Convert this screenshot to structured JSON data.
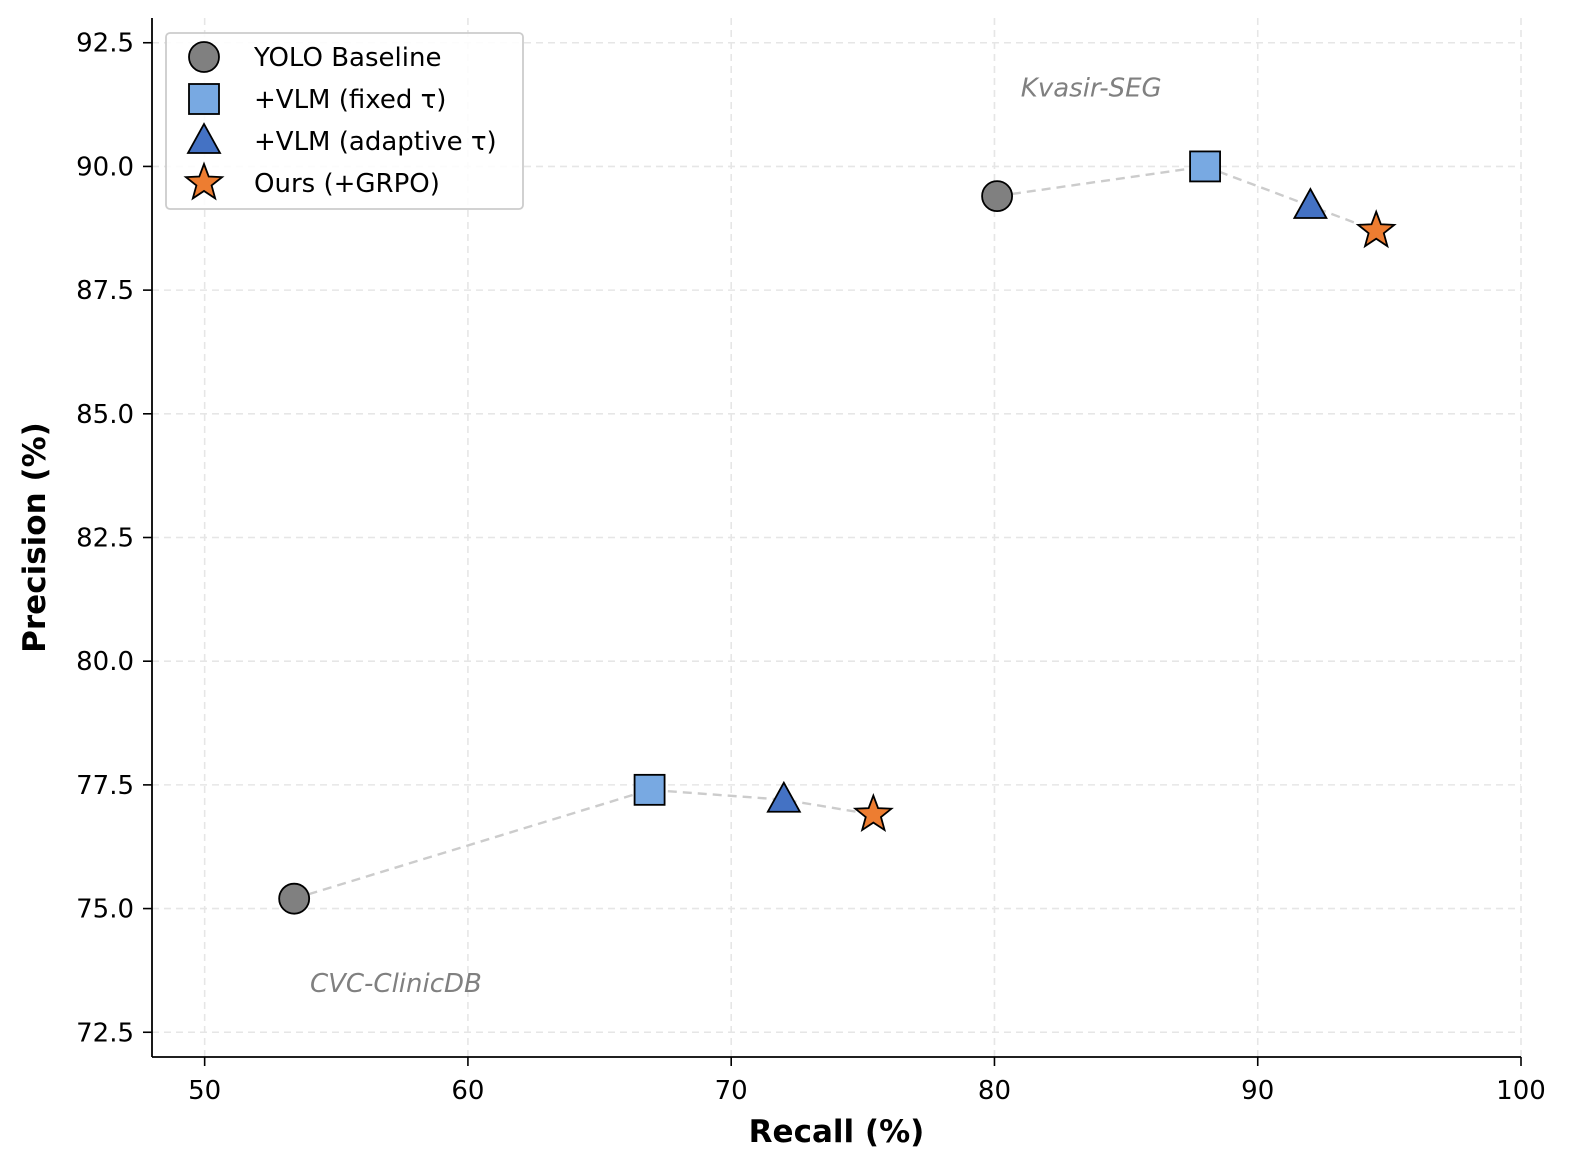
{
  "chart_data": {
    "type": "scatter",
    "title": "",
    "xlabel": "Recall (%)",
    "ylabel": "Precision (%)",
    "xlim": [
      48,
      100
    ],
    "ylim": [
      72,
      93
    ],
    "xticks": [
      50,
      60,
      70,
      80,
      90,
      100
    ],
    "yticks": [
      72.5,
      75.0,
      77.5,
      80.0,
      82.5,
      85.0,
      87.5,
      90.0,
      92.5
    ],
    "grid": true,
    "legend_position": "top-left",
    "methods": [
      {
        "name": "YOLO Baseline",
        "marker": "circle",
        "color": "#808080"
      },
      {
        "name": "+VLM (fixed τ)",
        "marker": "square",
        "color": "#78a9e2"
      },
      {
        "name": "+VLM (adaptive τ)",
        "marker": "triangle",
        "color": "#4472c4"
      },
      {
        "name": "Ours (+GRPO)",
        "marker": "star",
        "color": "#ed7d31"
      }
    ],
    "series": [
      {
        "name": "Kvasir-SEG",
        "label_anchor": [
          81.0,
          91.6
        ],
        "points": [
          [
            80.1,
            89.4
          ],
          [
            88.0,
            90.0
          ],
          [
            92.0,
            89.2
          ],
          [
            94.5,
            88.7
          ]
        ]
      },
      {
        "name": "CVC-ClinicDB",
        "label_anchor": [
          54.0,
          73.5
        ],
        "points": [
          [
            53.4,
            75.2
          ],
          [
            66.9,
            77.4
          ],
          [
            72.0,
            77.2
          ],
          [
            75.4,
            76.9
          ]
        ]
      }
    ],
    "line_color": "#cccccc"
  }
}
